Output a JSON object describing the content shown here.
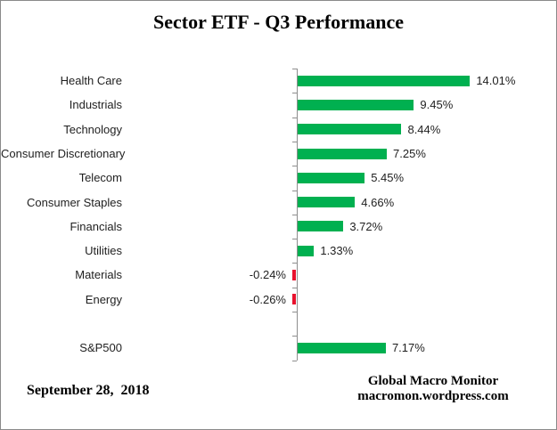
{
  "chart_data": {
    "type": "bar",
    "orientation": "horizontal",
    "title": "Sector ETF - Q3 Performance",
    "categories": [
      "Health Care",
      "Industrials",
      "Technology",
      "Consumer Discretionary",
      "Telecom",
      "Consumer Staples",
      "Financials",
      "Utilities",
      "Materials",
      "Energy",
      "",
      "S&P500"
    ],
    "values": [
      14.01,
      9.45,
      8.44,
      7.25,
      5.45,
      4.66,
      3.72,
      1.33,
      -0.24,
      -0.26,
      null,
      7.17
    ],
    "value_labels": [
      "14.01%",
      "9.45%",
      "8.44%",
      "7.25%",
      "5.45%",
      "4.66%",
      "3.72%",
      "1.33%",
      "-0.24%",
      "-0.26%",
      "",
      "7.17%"
    ],
    "xlabel": "",
    "ylabel": "",
    "xlim": [
      -1,
      16
    ],
    "grid": false,
    "legend": false,
    "positive_color": "#00b050",
    "negative_color": "#e8112d",
    "axis_color": "#8e8e8e"
  },
  "footer": {
    "date": "September 28,  2018",
    "credit_line1": "Global Macro Monitor",
    "credit_line2": "macromon.wordpress.com"
  }
}
